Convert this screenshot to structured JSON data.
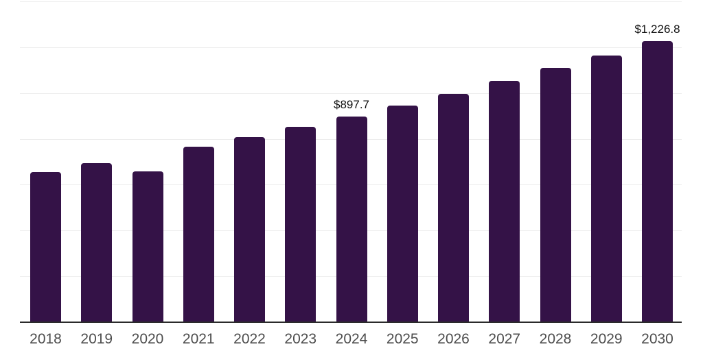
{
  "chart_data": {
    "type": "bar",
    "title": "",
    "xlabel": "",
    "ylabel": "",
    "categories": [
      "2018",
      "2019",
      "2020",
      "2021",
      "2022",
      "2023",
      "2024",
      "2025",
      "2026",
      "2027",
      "2028",
      "2029",
      "2030"
    ],
    "values": [
      656,
      693,
      659,
      765,
      809,
      852,
      897.7,
      945,
      995,
      1052,
      1109,
      1165,
      1226.8
    ],
    "annotations": [
      {
        "index": 6,
        "text": "$897.7"
      },
      {
        "index": 12,
        "text": "$1,226.8"
      }
    ],
    "ylim": [
      0,
      1400
    ],
    "grid_step": 200,
    "grid": "horizontal",
    "legend": false,
    "y_tick_labels_visible": false,
    "colors": {
      "bar": "#341247",
      "gridline": "#ededed",
      "axis_line": "#2b2b2b",
      "x_label": "#4d4d4d",
      "value_label": "#111111",
      "background": "#ffffff"
    }
  }
}
